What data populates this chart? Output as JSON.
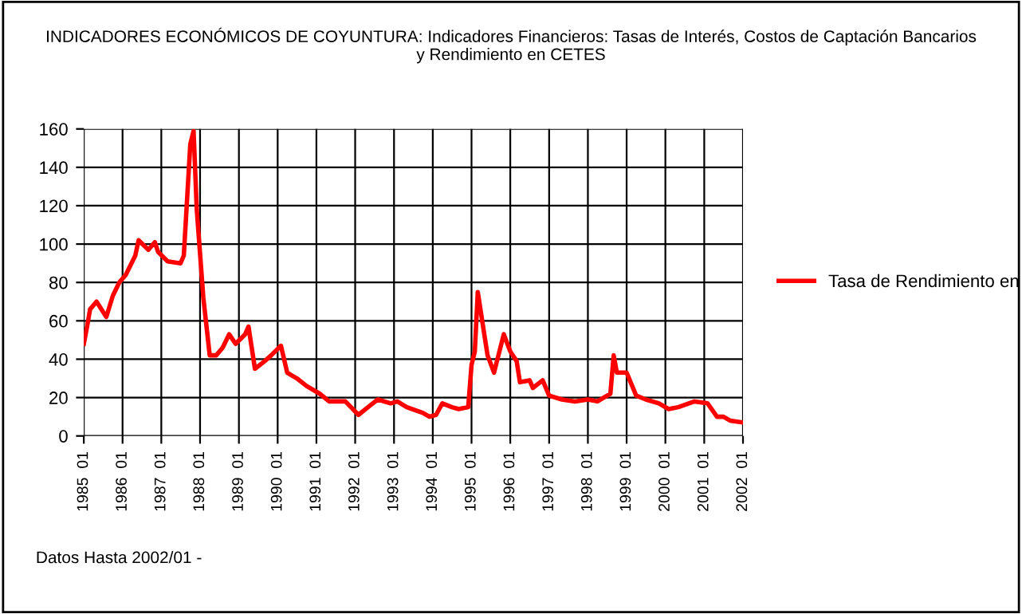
{
  "chart_data": {
    "type": "line",
    "title": "INDICADORES ECONÓMICOS DE COYUNTURA: Indicadores Financieros: Tasas de Interés, Costos de Captación Bancarios\ny Rendimiento en CETES",
    "x": [
      "1985-01",
      "1985-02",
      "1985-03",
      "1985-05",
      "1985-08",
      "1985-10",
      "1985-12",
      "1986-02",
      "1986-05",
      "1986-06",
      "1986-09",
      "1986-11",
      "1986-12",
      "1987-03",
      "1987-07",
      "1987-08",
      "1987-10",
      "1987-11",
      "1987-12",
      "1988-02",
      "1988-04",
      "1988-06",
      "1988-08",
      "1988-10",
      "1988-12",
      "1989-03",
      "1989-04",
      "1989-06",
      "1989-09",
      "1989-11",
      "1990-02",
      "1990-04",
      "1990-07",
      "1990-10",
      "1991-02",
      "1991-05",
      "1991-10",
      "1992-02",
      "1992-05",
      "1992-08",
      "1992-12",
      "1993-02",
      "1993-05",
      "1993-10",
      "1993-12",
      "1994-02",
      "1994-04",
      "1994-07",
      "1994-09",
      "1994-12",
      "1995-01",
      "1995-02",
      "1995-03",
      "1995-05",
      "1995-06",
      "1995-08",
      "1995-11",
      "1996-01",
      "1996-03",
      "1996-04",
      "1996-07",
      "1996-08",
      "1996-11",
      "1997-01",
      "1997-05",
      "1997-09",
      "1998-01",
      "1998-04",
      "1998-08",
      "1998-09",
      "1998-10",
      "1999-01",
      "1999-04",
      "1999-07",
      "1999-11",
      "2000-02",
      "2000-05",
      "2000-10",
      "2001-02",
      "2001-05",
      "2001-07",
      "2001-09",
      "2002-01"
    ],
    "series": [
      {
        "name": "Tasa de Rendimiento en",
        "color": "#ff0000",
        "values": [
          48,
          57,
          66,
          70,
          62,
          73,
          80,
          84,
          94,
          102,
          97,
          101,
          96,
          91,
          90,
          94,
          152,
          159,
          118,
          72,
          42,
          42,
          46,
          53,
          48,
          53,
          57,
          35,
          39,
          42,
          47,
          33,
          30,
          26,
          22,
          18,
          18,
          11,
          15,
          19,
          17,
          18,
          15,
          12,
          10,
          11,
          17,
          15,
          14,
          15,
          37,
          44,
          75,
          53,
          42,
          33,
          53,
          44,
          39,
          28,
          29,
          25,
          29,
          21,
          19,
          18,
          19,
          18,
          22,
          42,
          33,
          33,
          21,
          19,
          17,
          14,
          15,
          18,
          17,
          10,
          10,
          8,
          7
        ]
      }
    ],
    "xlim": [
      "1985-01",
      "2002-01"
    ],
    "xticks": [
      {
        "value": "1985-01",
        "label": "1985  01"
      },
      {
        "value": "1986-01",
        "label": "1986  01"
      },
      {
        "value": "1987-01",
        "label": "1987  01"
      },
      {
        "value": "1988-01",
        "label": "1988  01"
      },
      {
        "value": "1989-01",
        "label": "1989  01"
      },
      {
        "value": "1990-01",
        "label": "1990  01"
      },
      {
        "value": "1991-01",
        "label": "1991  01"
      },
      {
        "value": "1992-01",
        "label": "1992  01"
      },
      {
        "value": "1993-01",
        "label": "1993  01"
      },
      {
        "value": "1994-01",
        "label": "1994  01"
      },
      {
        "value": "1995-01",
        "label": "1995  01"
      },
      {
        "value": "1996-01",
        "label": "1996  01"
      },
      {
        "value": "1997-01",
        "label": "1997  01"
      },
      {
        "value": "1998-01",
        "label": "1998  01"
      },
      {
        "value": "1999-01",
        "label": "1999  01"
      },
      {
        "value": "2000-01",
        "label": "2000  01"
      },
      {
        "value": "2001-01",
        "label": "2001  01"
      },
      {
        "value": "2002-01",
        "label": "2002  01"
      }
    ],
    "ylim": [
      0,
      160
    ],
    "yticks": [
      0,
      20,
      40,
      60,
      80,
      100,
      120,
      140,
      160
    ],
    "grid": true,
    "legend": "right",
    "marker": "none",
    "line_style": "solid",
    "annotations": [
      "Datos Hasta 2002/01 -"
    ]
  }
}
